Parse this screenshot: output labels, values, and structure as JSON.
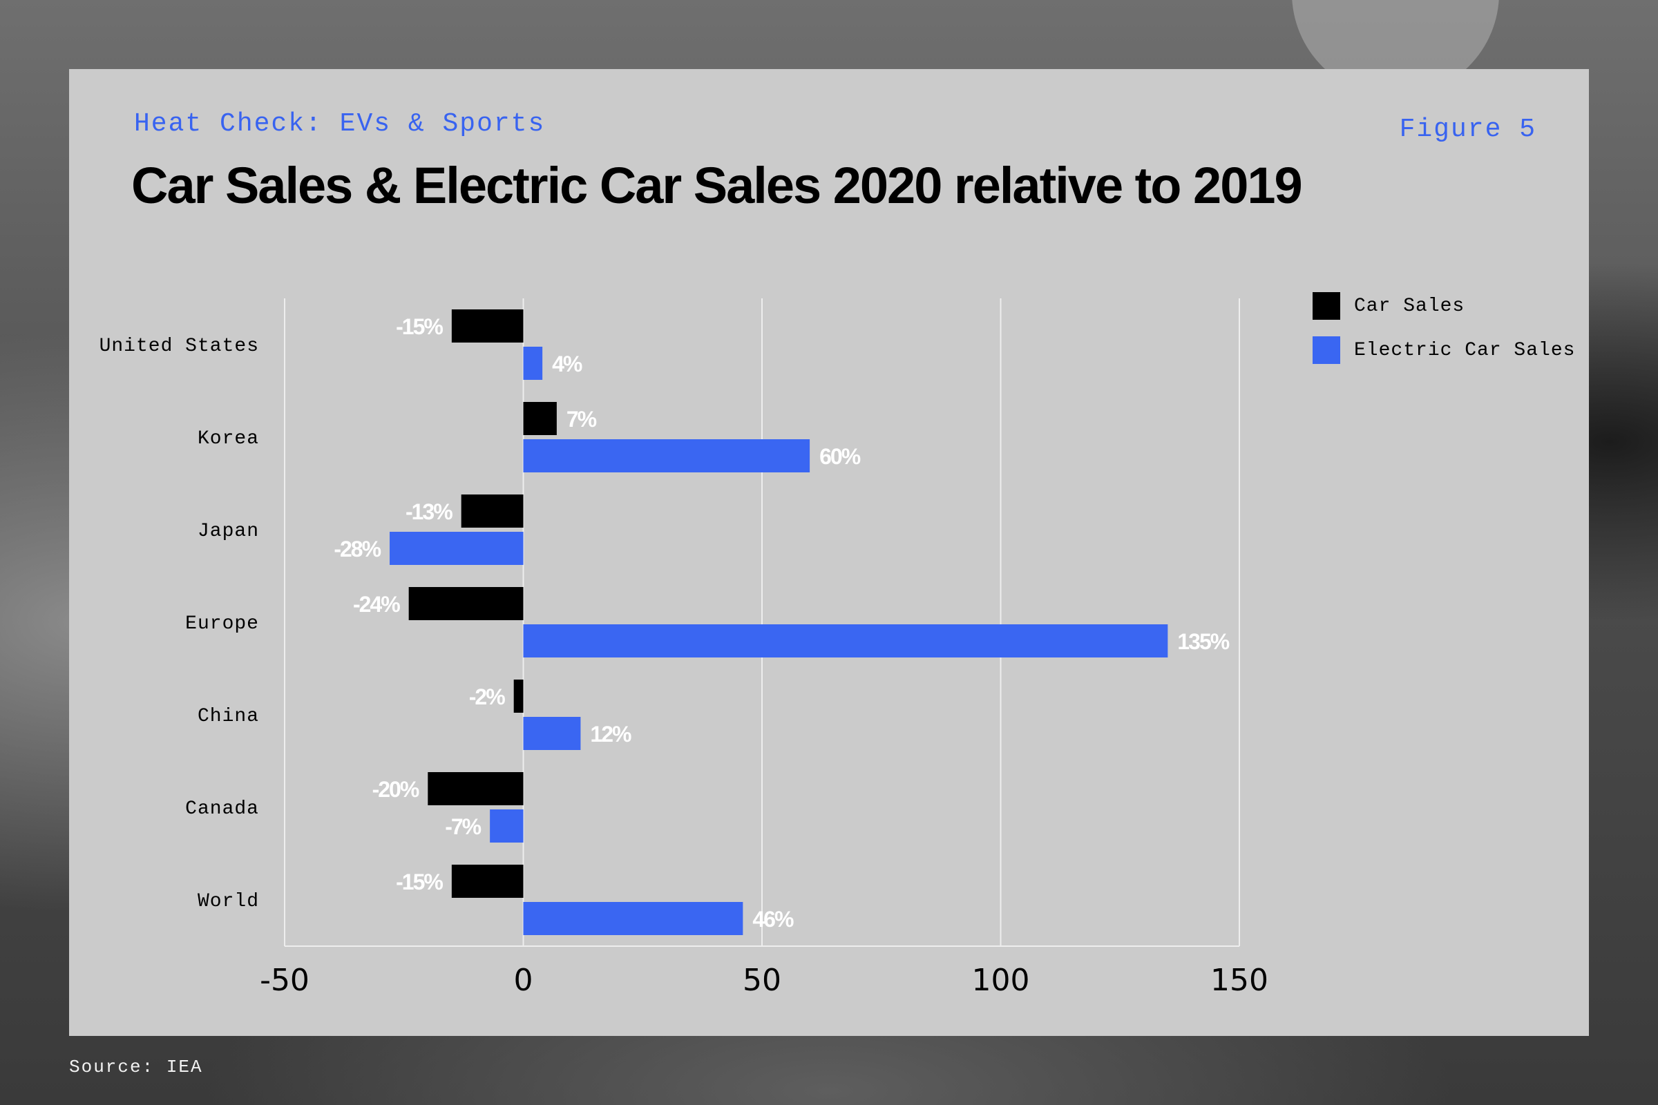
{
  "kicker": "Heat Check: EVs & Sports",
  "figure_label": "Figure 5",
  "title": "Car Sales & Electric Car Sales 2020 relative to 2019",
  "source": "Source: IEA",
  "colors": {
    "car_sales": "#000000",
    "electric_car_sales": "#3a66f2",
    "grid": "#eeeeee",
    "data_label": "#ffffff"
  },
  "chart_data": {
    "type": "bar",
    "orientation": "horizontal",
    "categories": [
      "United States",
      "Korea",
      "Japan",
      "Europe",
      "China",
      "Canada",
      "World"
    ],
    "series": [
      {
        "name": "Car Sales",
        "values": [
          -15,
          7,
          -13,
          -24,
          -2,
          -20,
          -15
        ],
        "labels": [
          "-15%",
          "7%",
          "-13%",
          "-24%",
          "-2%",
          "-20%",
          "-15%"
        ]
      },
      {
        "name": "Electric Car Sales",
        "values": [
          4,
          60,
          -28,
          135,
          12,
          -7,
          46
        ],
        "labels": [
          "4%",
          "60%",
          "-28%",
          "135%",
          "12%",
          "-7%",
          "46%"
        ]
      }
    ],
    "xlim": [
      -50,
      150
    ],
    "xticks": [
      -50,
      0,
      50,
      100,
      150
    ],
    "xtick_labels": [
      "-50",
      "0",
      "50",
      "100",
      "150"
    ],
    "grid": true,
    "legend_placement": "top-right"
  }
}
